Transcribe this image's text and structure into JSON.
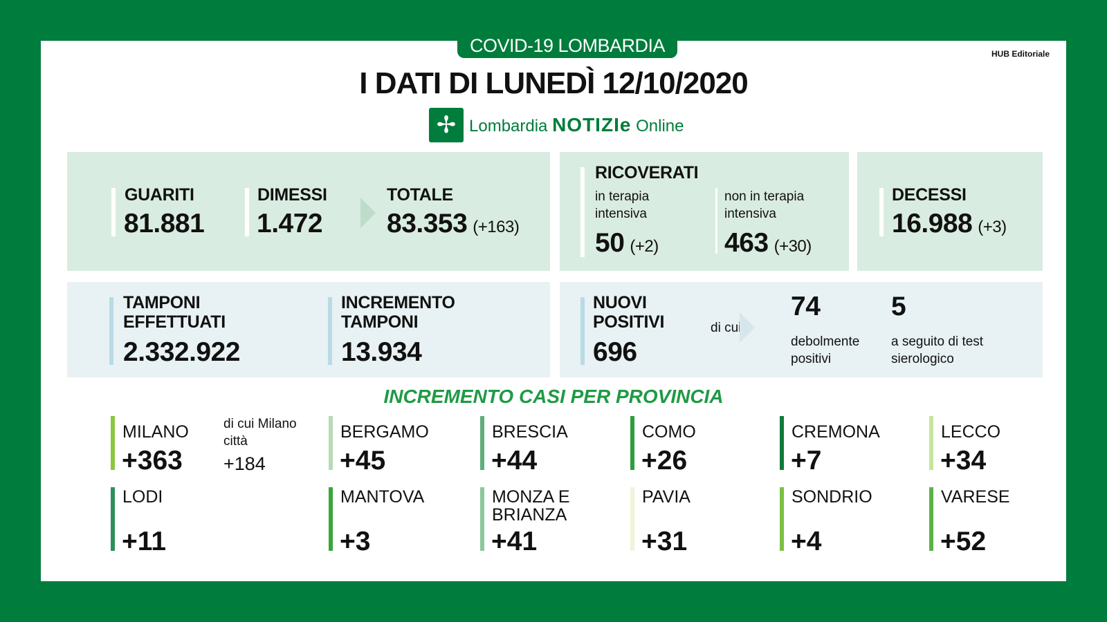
{
  "header": {
    "tag": "COVID-19 LOMBARDIA",
    "hub": "HUB Editoriale",
    "title": "I DATI DI LUNEDÌ 12/10/2020",
    "logo_icon": "lombardia-cross-icon",
    "logo_a": "Lombardia",
    "logo_b": "NOTIZIe",
    "logo_c": "Online"
  },
  "colors": {
    "brand": "#007c3c",
    "section": "#1f9a45",
    "box_green": "#d9ece1",
    "box_blue": "#e8f1f3"
  },
  "guariti": {
    "label": "GUARITI",
    "value": "81.881"
  },
  "dimessi": {
    "label": "DIMESSI",
    "value": "1.472"
  },
  "totale": {
    "label": "TOTALE",
    "value": "83.353",
    "delta": "(+163)"
  },
  "ricoverati": {
    "label": "RICOVERATI",
    "ti_label": "in terapia intensiva",
    "ti_value": "50",
    "ti_delta": "(+2)",
    "nti_label": "non in terapia intensiva",
    "nti_value": "463",
    "nti_delta": "(+30)"
  },
  "decessi": {
    "label": "DECESSI",
    "value": "16.988",
    "delta": "(+3)"
  },
  "tamponi": {
    "label": "TAMPONI EFFETTUATI",
    "value": "2.332.922"
  },
  "incremento": {
    "label": "INCREMENTO TAMPONI",
    "value": "13.934"
  },
  "positivi": {
    "label": "NUOVI POSITIVI",
    "value": "696",
    "di_cui": "di cui",
    "weak_value": "74",
    "weak_label": "debolmente positivi",
    "sero_value": "5",
    "sero_label": "a seguito di test sierologico"
  },
  "section_title": "INCREMENTO CASI PER PROVINCIA",
  "milano_city": {
    "label": "di cui Milano città",
    "value": "+184"
  },
  "provinces": [
    {
      "name": "MILANO",
      "value": "+363",
      "color": "#8dc63f"
    },
    {
      "name": "BERGAMO",
      "value": "+45",
      "color": "#b5dcb5"
    },
    {
      "name": "BRESCIA",
      "value": "+44",
      "color": "#5fae7a"
    },
    {
      "name": "COMO",
      "value": "+26",
      "color": "#2e9c3f"
    },
    {
      "name": "CREMONA",
      "value": "+7",
      "color": "#137a3c"
    },
    {
      "name": "LECCO",
      "value": "+34",
      "color": "#c6e59a"
    },
    {
      "name": "LODI",
      "value": "+11",
      "color": "#2f8f5a"
    },
    {
      "name": "MANTOVA",
      "value": "+3",
      "color": "#3aa53a"
    },
    {
      "name": "MONZA E BRIANZA",
      "value": "+41",
      "color": "#8cc79c"
    },
    {
      "name": "PAVIA",
      "value": "+31",
      "color": "#eef5d8"
    },
    {
      "name": "SONDRIO",
      "value": "+4",
      "color": "#7bc043"
    },
    {
      "name": "VARESE",
      "value": "+52",
      "color": "#5cb247"
    }
  ]
}
